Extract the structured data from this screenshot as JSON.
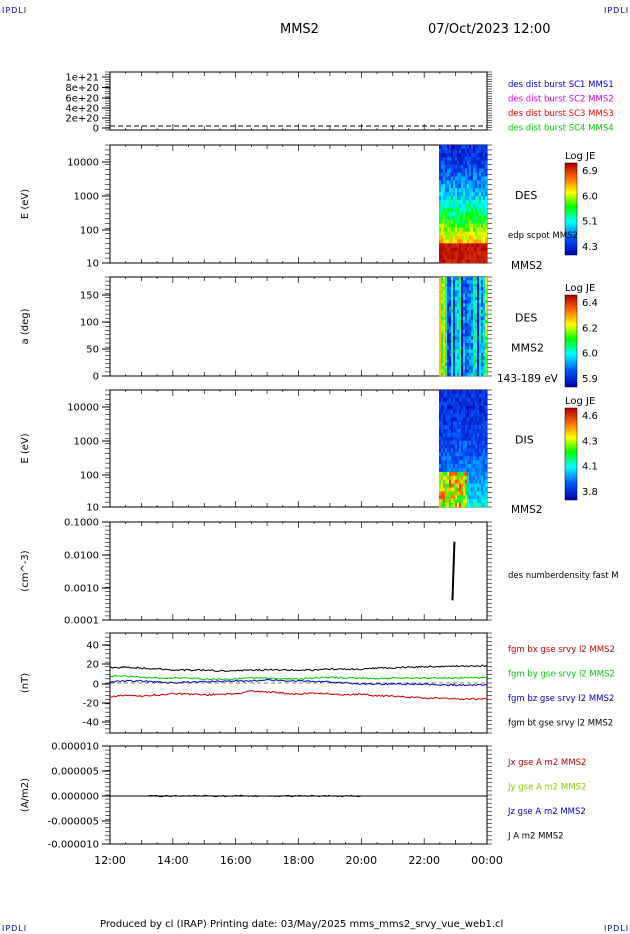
{
  "corner_label": "IPDLI",
  "header": {
    "spacecraft": "MMS2",
    "datetime": "07/Oct/2023 12:00"
  },
  "footer": "Produced by cl (IRAP)   Printing date: 03/May/2025   mms_mms2_srvy_vue_web1.cl",
  "colors": {
    "mms1": "#0000ff",
    "mms2": "#dd00dd",
    "mms3": "#ff0000",
    "mms4": "#00cc00",
    "bx": "#cc0000",
    "by": "#00cc00",
    "bz": "#0000cc",
    "bt": "#000000"
  },
  "chart_data": [
    {
      "type": "line",
      "id": "p1",
      "ytick_labels": [
        "1e+21",
        "8e+20",
        "6e+20",
        "4e+20",
        "2e+20",
        "0"
      ],
      "ylim": [
        0,
        1.1e+21
      ],
      "legend": [
        {
          "text": "des dist burst SC1 MMS1",
          "color": "#0000ff"
        },
        {
          "text": "des dist burst SC2 MMS2",
          "color": "#dd00dd"
        },
        {
          "text": "des dist burst SC3 MMS3",
          "color": "#ff0000"
        },
        {
          "text": "des dist burst SC4 MMS4",
          "color": "#00cc00"
        }
      ]
    },
    {
      "type": "heatmap",
      "id": "p2",
      "ylabel": "E (eV)",
      "yscale": "log",
      "ylim": [
        10,
        25000
      ],
      "ytick_labels": [
        "10000",
        "1000",
        "100",
        "10"
      ],
      "side_label": "DES",
      "side_sub": "edp scpot MMS2",
      "below_label": "MMS2",
      "colorbar": {
        "title": "Log JE",
        "ticks": [
          "6.9",
          "6.0",
          "5.1",
          "4.3"
        ]
      }
    },
    {
      "type": "heatmap",
      "id": "p3",
      "ylabel": "a (deg)",
      "ylim": [
        0,
        180
      ],
      "ytick_labels": [
        "150",
        "100",
        "50",
        "0"
      ],
      "side_label": "DES",
      "side_sub": "MMS2",
      "below_label": "143-189 eV",
      "colorbar": {
        "title": "Log JE",
        "ticks": [
          "6.4",
          "6.2",
          "6.0",
          "5.9"
        ]
      }
    },
    {
      "type": "heatmap",
      "id": "p4",
      "ylabel": "E (eV)",
      "yscale": "log",
      "ylim": [
        10,
        25000
      ],
      "ytick_labels": [
        "10000",
        "1000",
        "100",
        "10"
      ],
      "side_label": "DIS",
      "below_label": "MMS2",
      "colorbar": {
        "title": "Log JE",
        "ticks": [
          "4.6",
          "4.3",
          "4.1",
          "3.8"
        ]
      }
    },
    {
      "type": "line",
      "id": "p5",
      "ylabel": "(cm^-3)",
      "yscale": "log",
      "ylim": [
        0.0001,
        0.1
      ],
      "ytick_labels": [
        "0.1000",
        "0.0100",
        "0.0010",
        "0.0001"
      ],
      "legend": [
        {
          "text": "des numberdensity fast M",
          "color": "#000000"
        }
      ],
      "segment": {
        "x": 22.9,
        "y_range": [
          0.0004,
          0.025
        ]
      }
    },
    {
      "type": "line",
      "id": "p6",
      "ylabel": "(nT)",
      "ylim": [
        -50,
        50
      ],
      "ytick_labels": [
        "40",
        "20",
        "0",
        "-20",
        "-40"
      ],
      "legend": [
        {
          "text": "fgm bx gse srvy l2 MMS2",
          "color": "#cc0000"
        },
        {
          "text": "fgm by gse srvy l2 MMS2",
          "color": "#00cc00"
        },
        {
          "text": "fgm bz gse srvy l2 MMS2",
          "color": "#0000cc"
        },
        {
          "text": "fgm bt gse srvy l2 MMS2",
          "color": "#000000"
        }
      ],
      "series": [
        {
          "name": "fgm bx gse srvy l2 MMS2",
          "x": [
            12,
            12.5,
            13,
            13.5,
            14,
            14.5,
            15,
            15.5,
            16,
            16.5,
            17,
            17.5,
            18,
            18.5,
            19,
            19.5,
            20,
            20.5,
            21,
            21.5,
            22,
            22.5,
            23,
            23.5,
            24
          ],
          "values": [
            -14,
            -12,
            -13,
            -12,
            -11,
            -11,
            -12,
            -11,
            -11,
            -8,
            -9,
            -10,
            -11,
            -10,
            -11,
            -12,
            -11,
            -13,
            -13,
            -14,
            -15,
            -15,
            -16,
            -16,
            -16
          ]
        },
        {
          "name": "fgm by gse srvy l2 MMS2",
          "x": [
            12,
            12.5,
            13,
            13.5,
            14,
            14.5,
            15,
            15.5,
            16,
            16.5,
            17,
            17.5,
            18,
            18.5,
            19,
            19.5,
            20,
            20.5,
            21,
            21.5,
            22,
            22.5,
            23,
            23.5,
            24
          ],
          "values": [
            7,
            7,
            6,
            5,
            5,
            5,
            4,
            4,
            4,
            5,
            5,
            4,
            4,
            5,
            6,
            5,
            5,
            4,
            5,
            5,
            5,
            5,
            5,
            5,
            5
          ]
        },
        {
          "name": "fgm bz gse srvy l2 MMS2",
          "x": [
            12,
            12.5,
            13,
            13.5,
            14,
            14.5,
            15,
            15.5,
            16,
            16.5,
            17,
            17.5,
            18,
            18.5,
            19,
            19.5,
            20,
            20.5,
            21,
            21.5,
            22,
            22.5,
            23,
            23.5,
            24
          ],
          "values": [
            1,
            2,
            2,
            1,
            0,
            1,
            1,
            2,
            2,
            2,
            3,
            2,
            2,
            2,
            1,
            0,
            -1,
            -1,
            -1,
            -1,
            -1,
            -2,
            -2,
            -2,
            -2
          ]
        },
        {
          "name": "fgm bt gse srvy l2 MMS2",
          "x": [
            12,
            12.5,
            13,
            13.5,
            14,
            14.5,
            15,
            15.5,
            16,
            16.5,
            17,
            17.5,
            18,
            18.5,
            19,
            19.5,
            20,
            20.5,
            21,
            21.5,
            22,
            22.5,
            23,
            23.5,
            24
          ],
          "values": [
            15,
            16,
            15,
            14,
            13,
            13,
            13,
            12,
            12,
            13,
            13,
            13,
            13,
            13,
            14,
            14,
            14,
            15,
            15,
            16,
            16,
            16,
            17,
            17,
            17
          ]
        }
      ]
    },
    {
      "type": "line",
      "id": "p7",
      "ylabel": "(A/m2)",
      "ylim": [
        -1e-05,
        1e-05
      ],
      "ytick_labels": [
        "0.000010",
        "0.000005",
        "0.000000",
        "-0.000005",
        "-0.000010"
      ],
      "legend": [
        {
          "text": "Jx gse A m2 MMS2",
          "color": "#cc0000"
        },
        {
          "text": "Jy gse A m2 MMS2",
          "color": "#88cc00"
        },
        {
          "text": "Jz gse A m2 MMS2",
          "color": "#0000cc"
        },
        {
          "text": "J A m2 MMS2",
          "color": "#000000"
        }
      ]
    }
  ],
  "xaxis": {
    "xlim": [
      12,
      24
    ],
    "tick_labels": [
      "12:00",
      "14:00",
      "16:00",
      "18:00",
      "20:00",
      "22:00",
      "00:00"
    ]
  }
}
